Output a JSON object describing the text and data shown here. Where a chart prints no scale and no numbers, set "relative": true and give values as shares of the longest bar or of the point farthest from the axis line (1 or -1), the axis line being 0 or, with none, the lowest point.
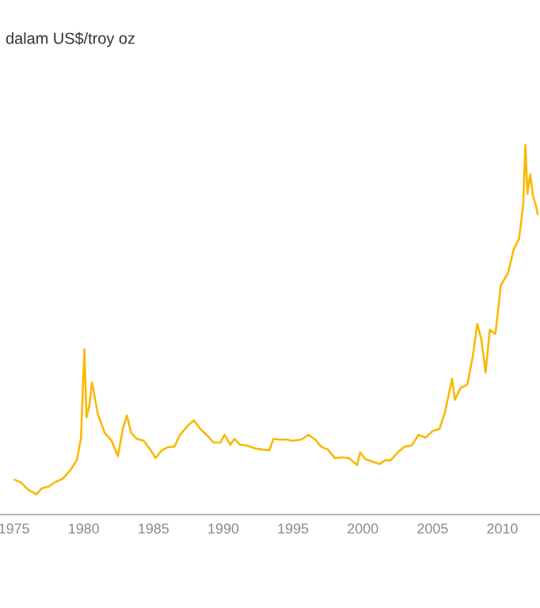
{
  "chart_data": {
    "type": "line",
    "title": "dalam US$/troy oz",
    "relative": true,
    "color": "#fbb800",
    "x": [
      1975.0,
      1975.5,
      1976.0,
      1976.6,
      1977.0,
      1977.5,
      1978.0,
      1978.5,
      1979.0,
      1979.5,
      1979.8,
      1980.05,
      1980.2,
      1980.4,
      1980.6,
      1980.75,
      1981.0,
      1981.5,
      1982.0,
      1982.45,
      1982.8,
      1983.1,
      1983.4,
      1983.8,
      1984.3,
      1984.8,
      1985.15,
      1985.6,
      1986.0,
      1986.5,
      1986.9,
      1987.5,
      1987.9,
      1988.3,
      1988.8,
      1989.3,
      1989.8,
      1990.1,
      1990.5,
      1990.8,
      1991.2,
      1991.7,
      1992.3,
      1992.8,
      1993.3,
      1993.6,
      1994.0,
      1994.5,
      1995.0,
      1995.6,
      1996.1,
      1996.6,
      1997.0,
      1997.5,
      1998.0,
      1998.5,
      1999.0,
      1999.6,
      1999.8,
      2000.2,
      2000.8,
      2001.2,
      2001.6,
      2002.0,
      2002.5,
      2003.0,
      2003.5,
      2004.0,
      2004.5,
      2005.0,
      2005.5,
      2005.9,
      2006.4,
      2006.6,
      2007.0,
      2007.5,
      2007.9,
      2008.2,
      2008.5,
      2008.8,
      2009.1,
      2009.5,
      2009.9,
      2010.4,
      2010.8,
      2011.2,
      2011.5,
      2011.65,
      2011.8,
      2012.0,
      2012.2,
      2012.4,
      2012.55
    ],
    "values": [
      0.095,
      0.087,
      0.068,
      0.055,
      0.071,
      0.076,
      0.089,
      0.097,
      0.118,
      0.147,
      0.205,
      0.447,
      0.263,
      0.295,
      0.358,
      0.326,
      0.274,
      0.221,
      0.2,
      0.158,
      0.232,
      0.268,
      0.221,
      0.205,
      0.2,
      0.174,
      0.153,
      0.174,
      0.182,
      0.184,
      0.216,
      0.242,
      0.255,
      0.234,
      0.216,
      0.195,
      0.195,
      0.216,
      0.189,
      0.205,
      0.189,
      0.187,
      0.179,
      0.176,
      0.174,
      0.205,
      0.203,
      0.203,
      0.2,
      0.203,
      0.216,
      0.203,
      0.184,
      0.176,
      0.153,
      0.155,
      0.153,
      0.134,
      0.168,
      0.15,
      0.142,
      0.137,
      0.147,
      0.147,
      0.168,
      0.184,
      0.187,
      0.216,
      0.208,
      0.226,
      0.232,
      0.279,
      0.368,
      0.311,
      0.342,
      0.353,
      0.432,
      0.516,
      0.474,
      0.384,
      0.5,
      0.489,
      0.621,
      0.653,
      0.716,
      0.747,
      0.842,
      1,
      0.868,
      0.921,
      0.863,
      0.837,
      0.811
    ],
    "xlim": [
      1974,
      2012.7
    ],
    "xticks": [
      1975,
      1980,
      1985,
      1990,
      1995,
      2000,
      2005,
      2010
    ]
  }
}
